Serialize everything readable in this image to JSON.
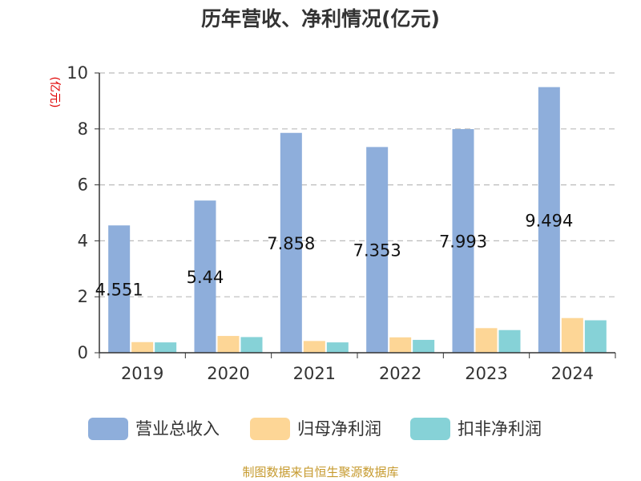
{
  "chart_data": {
    "type": "bar",
    "title": "历年营收、净利情况(亿元)",
    "ylabel": "(亿元)",
    "categories": [
      "2019",
      "2020",
      "2021",
      "2022",
      "2023",
      "2024"
    ],
    "ylim": [
      0,
      10
    ],
    "yticks": [
      0,
      2,
      4,
      6,
      8,
      10
    ],
    "grid": true,
    "legend_position": "bottom",
    "series": [
      {
        "name": "营业总收入",
        "color": "#8eaedb",
        "values": [
          4.551,
          5.44,
          7.858,
          7.353,
          7.993,
          9.494
        ],
        "labels": [
          "4.551",
          "5.44",
          "7.858",
          "7.353",
          "7.993",
          "9.494"
        ]
      },
      {
        "name": "归母净利润",
        "color": "#fdd696",
        "values": [
          0.38,
          0.6,
          0.42,
          0.55,
          0.88,
          1.24
        ]
      },
      {
        "name": "扣非净利润",
        "color": "#86d2d7",
        "values": [
          0.37,
          0.56,
          0.37,
          0.46,
          0.81,
          1.16
        ]
      }
    ]
  },
  "source_text": "制图数据来自恒生聚源数据库"
}
